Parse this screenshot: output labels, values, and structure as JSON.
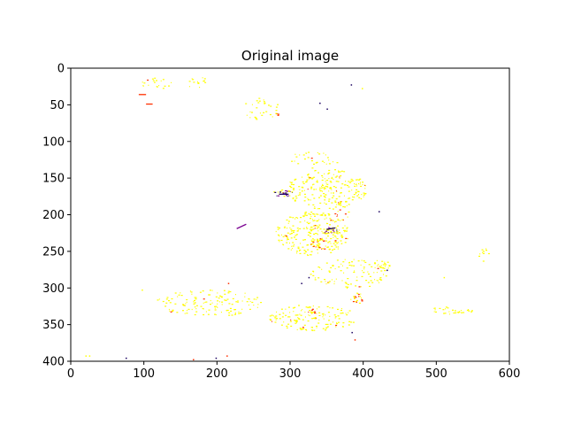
{
  "chart_data": {
    "type": "heatmap",
    "title": "Original image",
    "xlabel": "",
    "ylabel": "",
    "xlim": [
      0,
      600
    ],
    "ylim": [
      400,
      0
    ],
    "x_ticks": [
      "0",
      "100",
      "200",
      "300",
      "400",
      "500",
      "600"
    ],
    "y_ticks": [
      "0",
      "50",
      "100",
      "150",
      "200",
      "250",
      "300",
      "350",
      "400"
    ],
    "grid": false,
    "colors": {
      "background": "#ffffff",
      "low": "#ffff00",
      "mid": "#ff3000",
      "high": "#7a0090",
      "dark": "#1a0060"
    },
    "clusters": [
      {
        "x": 120,
        "y": 20,
        "rx": 25,
        "ry": 8,
        "n": 20,
        "level": 0
      },
      {
        "x": 175,
        "y": 20,
        "rx": 18,
        "ry": 8,
        "n": 14,
        "level": 0
      },
      {
        "x": 260,
        "y": 55,
        "rx": 25,
        "ry": 15,
        "n": 30,
        "level": 0
      },
      {
        "x": 330,
        "y": 125,
        "rx": 35,
        "ry": 12,
        "n": 30,
        "level": 0
      },
      {
        "x": 350,
        "y": 165,
        "rx": 55,
        "ry": 28,
        "n": 220,
        "level": 0
      },
      {
        "x": 330,
        "y": 225,
        "rx": 50,
        "ry": 30,
        "n": 260,
        "level": 0
      },
      {
        "x": 380,
        "y": 280,
        "rx": 55,
        "ry": 20,
        "n": 100,
        "level": 0
      },
      {
        "x": 190,
        "y": 320,
        "rx": 75,
        "ry": 18,
        "n": 140,
        "level": 0
      },
      {
        "x": 330,
        "y": 340,
        "rx": 60,
        "ry": 18,
        "n": 140,
        "level": 0
      },
      {
        "x": 520,
        "y": 330,
        "rx": 30,
        "ry": 5,
        "n": 30,
        "level": 0
      },
      {
        "x": 565,
        "y": 255,
        "rx": 8,
        "ry": 10,
        "n": 10,
        "level": 0
      },
      {
        "x": 425,
        "y": 268,
        "rx": 12,
        "ry": 8,
        "n": 20,
        "level": 0
      },
      {
        "x": 290,
        "y": 170,
        "rx": 14,
        "ry": 5,
        "n": 28,
        "level": 2
      },
      {
        "x": 355,
        "y": 222,
        "rx": 12,
        "ry": 6,
        "n": 28,
        "level": 2
      },
      {
        "x": 390,
        "y": 313,
        "rx": 10,
        "ry": 8,
        "n": 22,
        "level": 1
      },
      {
        "x": 330,
        "y": 335,
        "rx": 6,
        "ry": 10,
        "n": 18,
        "level": 1
      },
      {
        "x": 340,
        "y": 240,
        "rx": 12,
        "ry": 8,
        "n": 18,
        "level": 1
      },
      {
        "x": 370,
        "y": 195,
        "rx": 10,
        "ry": 15,
        "n": 20,
        "level": 1
      },
      {
        "x": 280,
        "y": 62,
        "rx": 3,
        "ry": 4,
        "n": 6,
        "level": 1
      }
    ],
    "segments": [
      {
        "x1": 93,
        "y1": 36,
        "x2": 103,
        "y2": 36,
        "level": 1
      },
      {
        "x1": 103,
        "y1": 49,
        "x2": 112,
        "y2": 49,
        "level": 1
      },
      {
        "x1": 227,
        "y1": 219,
        "x2": 240,
        "y2": 213,
        "level": 2
      },
      {
        "x1": 350,
        "y1": 220,
        "x2": 362,
        "y2": 218,
        "level": 3
      },
      {
        "x1": 285,
        "y1": 172,
        "x2": 298,
        "y2": 172,
        "level": 3
      }
    ],
    "specks": [
      {
        "x": 383,
        "y": 22,
        "level": 3
      },
      {
        "x": 398,
        "y": 27,
        "level": 0
      },
      {
        "x": 340,
        "y": 47,
        "level": 3
      },
      {
        "x": 350,
        "y": 55,
        "level": 3
      },
      {
        "x": 421,
        "y": 195,
        "level": 3
      },
      {
        "x": 315,
        "y": 293,
        "level": 3
      },
      {
        "x": 325,
        "y": 285,
        "level": 3
      },
      {
        "x": 432,
        "y": 275,
        "level": 3
      },
      {
        "x": 388,
        "y": 370,
        "level": 1
      },
      {
        "x": 384,
        "y": 360,
        "level": 3
      },
      {
        "x": 75,
        "y": 395,
        "level": 3
      },
      {
        "x": 167,
        "y": 397,
        "level": 1
      },
      {
        "x": 198,
        "y": 395,
        "level": 3
      },
      {
        "x": 213,
        "y": 392,
        "level": 1
      },
      {
        "x": 20,
        "y": 392,
        "level": 0
      },
      {
        "x": 25,
        "y": 392,
        "level": 0
      },
      {
        "x": 510,
        "y": 285,
        "level": 0
      },
      {
        "x": 97,
        "y": 302,
        "level": 0
      },
      {
        "x": 215,
        "y": 293,
        "level": 1
      }
    ]
  }
}
